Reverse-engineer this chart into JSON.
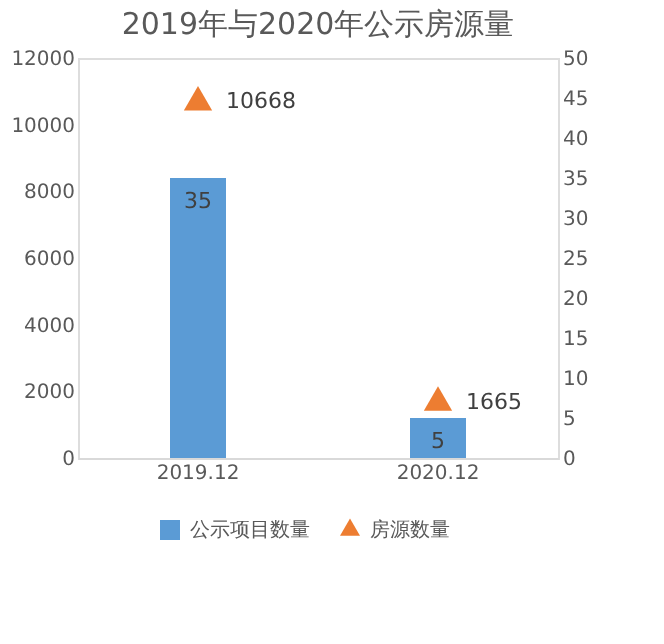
{
  "chart_data": {
    "type": "bar",
    "title": "2019年与2020年公示房源量",
    "categories": [
      "2019.12",
      "2020.12"
    ],
    "series": [
      {
        "name": "公示项目数量",
        "axis": "y2",
        "color": "#5b9bd5",
        "values": [
          35,
          5
        ]
      },
      {
        "name": "房源数量",
        "type": "scatter",
        "marker": "triangle",
        "color": "#ed7d31",
        "values": [
          10668,
          1665
        ]
      }
    ],
    "ylim": [
      0,
      12000
    ],
    "yticks": [
      0,
      2000,
      4000,
      6000,
      8000,
      10000,
      12000
    ],
    "y2lim": [
      0,
      50
    ],
    "y2ticks": [
      0,
      5,
      10,
      15,
      20,
      25,
      30,
      35,
      40,
      45,
      50
    ],
    "data_labels": true,
    "grid": false,
    "legend": "bottom"
  }
}
